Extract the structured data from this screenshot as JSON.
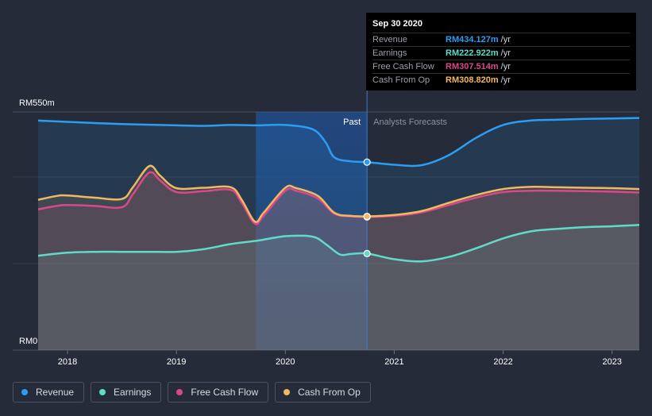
{
  "chart_data": {
    "type": "area",
    "y_axis": {
      "top_label": "RM550m",
      "bottom_label": "RM0",
      "ylim": [
        0,
        550
      ]
    },
    "x_axis": {
      "tick_labels": [
        "2018",
        "2019",
        "2020",
        "2021",
        "2022",
        "2023"
      ],
      "xlim": [
        2017.73,
        2023.25
      ]
    },
    "divider": {
      "at": 2020.75,
      "past_label": "Past",
      "forecast_label": "Analysts Forecasts"
    },
    "series": [
      {
        "name": "Revenue",
        "color": "#2a9df4",
        "points": [
          [
            2017.73,
            530
          ],
          [
            2018.0,
            527
          ],
          [
            2018.5,
            522
          ],
          [
            2019.0,
            519
          ],
          [
            2019.25,
            518
          ],
          [
            2019.5,
            520
          ],
          [
            2019.75,
            519
          ],
          [
            2020.0,
            520
          ],
          [
            2020.25,
            510
          ],
          [
            2020.37,
            480
          ],
          [
            2020.45,
            445
          ],
          [
            2020.6,
            436
          ],
          [
            2020.75,
            434.127
          ],
          [
            2021.0,
            428
          ],
          [
            2021.25,
            427
          ],
          [
            2021.5,
            450
          ],
          [
            2021.75,
            490
          ],
          [
            2022.0,
            520
          ],
          [
            2022.25,
            530
          ],
          [
            2022.5,
            532
          ],
          [
            2022.75,
            534
          ],
          [
            2023.0,
            535
          ],
          [
            2023.25,
            536
          ]
        ]
      },
      {
        "name": "Earnings",
        "color": "#5fdcc8",
        "points": [
          [
            2017.73,
            218
          ],
          [
            2018.0,
            225
          ],
          [
            2018.25,
            227
          ],
          [
            2018.5,
            227
          ],
          [
            2018.75,
            227
          ],
          [
            2019.0,
            227
          ],
          [
            2019.25,
            233
          ],
          [
            2019.5,
            245
          ],
          [
            2019.75,
            253
          ],
          [
            2020.0,
            263
          ],
          [
            2020.25,
            262
          ],
          [
            2020.37,
            245
          ],
          [
            2020.5,
            221
          ],
          [
            2020.6,
            222
          ],
          [
            2020.75,
            222.922
          ],
          [
            2021.0,
            210
          ],
          [
            2021.25,
            205
          ],
          [
            2021.5,
            215
          ],
          [
            2021.75,
            235
          ],
          [
            2022.0,
            258
          ],
          [
            2022.25,
            274
          ],
          [
            2022.5,
            280
          ],
          [
            2022.75,
            284
          ],
          [
            2023.0,
            286
          ],
          [
            2023.25,
            289
          ]
        ]
      },
      {
        "name": "Free Cash Flow",
        "color": "#d9498a",
        "points": [
          [
            2017.73,
            325
          ],
          [
            2017.9,
            333
          ],
          [
            2018.0,
            335
          ],
          [
            2018.25,
            333
          ],
          [
            2018.5,
            330
          ],
          [
            2018.6,
            360
          ],
          [
            2018.75,
            410
          ],
          [
            2018.85,
            392
          ],
          [
            2019.0,
            365
          ],
          [
            2019.25,
            367
          ],
          [
            2019.5,
            370
          ],
          [
            2019.6,
            340
          ],
          [
            2019.72,
            292
          ],
          [
            2019.8,
            310
          ],
          [
            2020.0,
            368
          ],
          [
            2020.1,
            368
          ],
          [
            2020.3,
            350
          ],
          [
            2020.45,
            315
          ],
          [
            2020.6,
            309
          ],
          [
            2020.75,
            307.514
          ],
          [
            2021.0,
            310
          ],
          [
            2021.25,
            318
          ],
          [
            2021.5,
            335
          ],
          [
            2021.75,
            352
          ],
          [
            2022.0,
            365
          ],
          [
            2022.25,
            368
          ],
          [
            2022.5,
            368
          ],
          [
            2022.75,
            367
          ],
          [
            2023.0,
            366
          ],
          [
            2023.25,
            364
          ]
        ]
      },
      {
        "name": "Cash From Op",
        "color": "#f0b860",
        "points": [
          [
            2017.73,
            347
          ],
          [
            2017.9,
            356
          ],
          [
            2018.0,
            357
          ],
          [
            2018.25,
            352
          ],
          [
            2018.5,
            349
          ],
          [
            2018.6,
            376
          ],
          [
            2018.75,
            425
          ],
          [
            2018.85,
            403
          ],
          [
            2019.0,
            374
          ],
          [
            2019.25,
            375
          ],
          [
            2019.5,
            376
          ],
          [
            2019.6,
            347
          ],
          [
            2019.72,
            297
          ],
          [
            2019.8,
            317
          ],
          [
            2020.0,
            375
          ],
          [
            2020.1,
            374
          ],
          [
            2020.3,
            356
          ],
          [
            2020.45,
            317
          ],
          [
            2020.6,
            310
          ],
          [
            2020.75,
            308.82
          ],
          [
            2021.0,
            312
          ],
          [
            2021.25,
            321
          ],
          [
            2021.5,
            340
          ],
          [
            2021.75,
            358
          ],
          [
            2022.0,
            372
          ],
          [
            2022.25,
            377
          ],
          [
            2022.5,
            376
          ],
          [
            2022.75,
            375
          ],
          [
            2023.0,
            374
          ],
          [
            2023.25,
            372
          ]
        ]
      }
    ],
    "highlight_x": 2020.75,
    "highlight_start": 2019.73
  },
  "tooltip": {
    "date": "Sep 30 2020",
    "rows": [
      {
        "label": "Revenue",
        "value": "RM434.127m",
        "unit": "/yr",
        "color": "#2a9df4"
      },
      {
        "label": "Earnings",
        "value": "RM222.922m",
        "unit": "/yr",
        "color": "#5fdcc8"
      },
      {
        "label": "Free Cash Flow",
        "value": "RM307.514m",
        "unit": "/yr",
        "color": "#d9498a"
      },
      {
        "label": "Cash From Op",
        "value": "RM308.820m",
        "unit": "/yr",
        "color": "#f0b860"
      }
    ]
  },
  "legend": [
    {
      "label": "Revenue",
      "color": "#2a9df4"
    },
    {
      "label": "Earnings",
      "color": "#5fdcc8"
    },
    {
      "label": "Free Cash Flow",
      "color": "#d9498a"
    },
    {
      "label": "Cash From Op",
      "color": "#f0b860"
    }
  ]
}
